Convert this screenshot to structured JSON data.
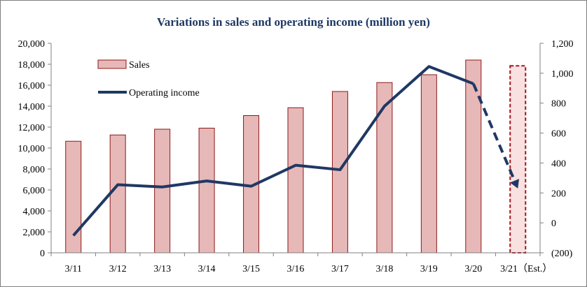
{
  "chart_data": {
    "type": "bar",
    "title": "Variations in sales and operating income (million  yen)",
    "categories": [
      "3/11",
      "3/12",
      "3/13",
      "3/14",
      "3/15",
      "3/16",
      "3/17",
      "3/18",
      "3/19",
      "3/20",
      "3/21（Est.）"
    ],
    "series": [
      {
        "name": "Sales",
        "type": "bar",
        "axis": "left",
        "values": [
          10650,
          11250,
          11800,
          11900,
          13100,
          13850,
          15400,
          16250,
          17000,
          18400,
          17850
        ],
        "estimated_last": true
      },
      {
        "name": "Operating income",
        "type": "line",
        "axis": "right",
        "values": [
          -85,
          255,
          240,
          280,
          245,
          385,
          355,
          780,
          1045,
          930,
          230
        ],
        "estimated_last": true
      }
    ],
    "y_left": {
      "ylim": [
        0,
        20000
      ],
      "ticks": [
        "0",
        "2,000",
        "4,000",
        "6,000",
        "8,000",
        "10,000",
        "12,000",
        "14,000",
        "16,000",
        "18,000",
        "20,000"
      ]
    },
    "y_right": {
      "ylim": [
        -200,
        1200
      ],
      "ticks": [
        "(200)",
        "0",
        "200",
        "400",
        "600",
        "800",
        "1,000",
        "1,200"
      ],
      "negative_color": "#c00000"
    },
    "legend_placement": "top-left",
    "grid": false,
    "colors": {
      "bar_fill": "#e6b8b7",
      "bar_stroke": "#8b1a1a",
      "estimate_stroke": "#a4161a",
      "line": "#1f3864",
      "title": "#1f3864",
      "axis": "#808080"
    }
  }
}
